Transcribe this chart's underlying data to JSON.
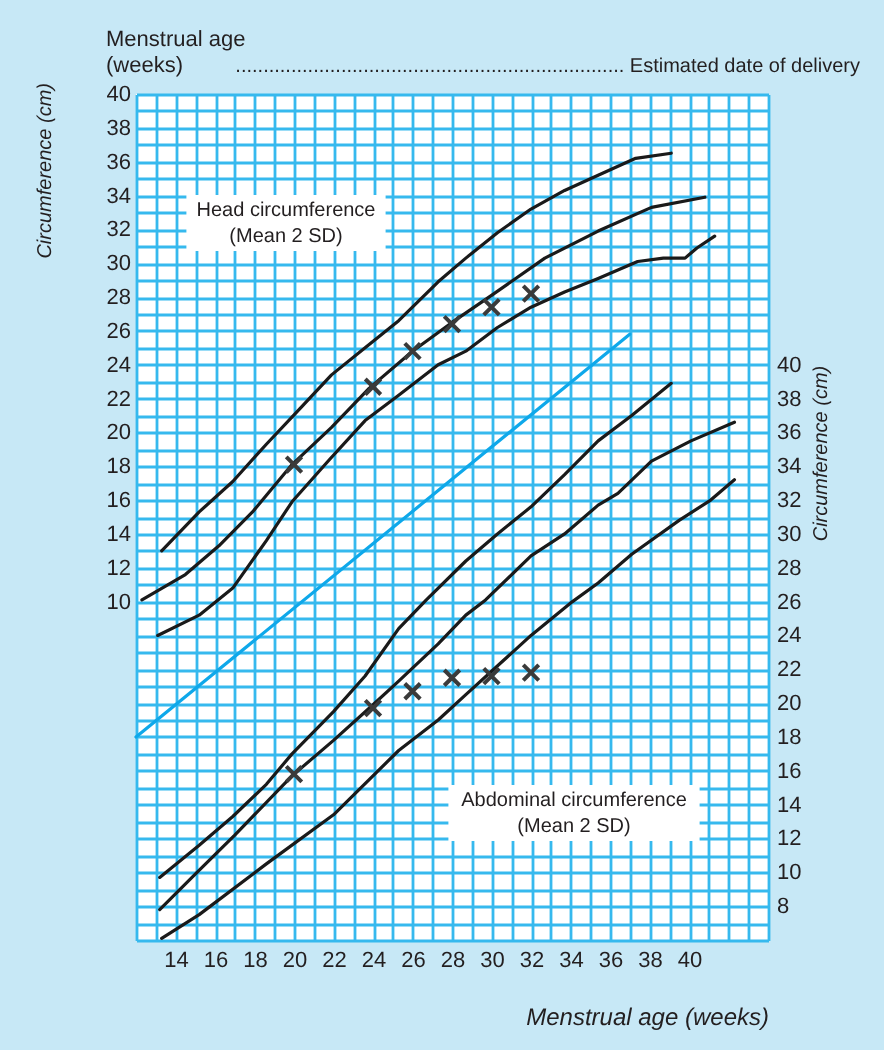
{
  "chart_data": {
    "type": "line",
    "xlabel": "Menstrual age (weeks)",
    "ylabel": "Circumference (cm)",
    "y2label": "Circumference (cm)",
    "annotations": [
      "Menstrual age\n(weeks)",
      "...................................................................... Estimated date of delivery",
      "Head circumference\n(Mean 2 SD)",
      "Abdominal circumference\n(Mean 2 SD)"
    ],
    "xlim": [
      12,
      44
    ],
    "xticks": [
      {
        "value": 12,
        "label": null
      },
      {
        "value": 13,
        "label": null
      },
      14,
      {
        "value": 15,
        "label": null
      },
      16,
      {
        "value": 17,
        "label": null
      },
      18,
      {
        "value": 19,
        "label": null
      },
      20,
      {
        "value": 21,
        "label": null
      },
      22,
      {
        "value": 23,
        "label": null
      },
      24,
      {
        "value": 25,
        "label": null
      },
      26,
      {
        "value": 27,
        "label": null
      },
      28,
      {
        "value": 29,
        "label": null
      },
      30,
      {
        "value": 31,
        "label": null
      },
      32,
      {
        "value": 33,
        "label": null
      },
      34,
      {
        "value": 35,
        "label": null
      },
      36,
      {
        "value": 37,
        "label": null
      },
      38,
      {
        "value": 39,
        "label": null
      },
      40,
      {
        "value": 41,
        "label": null
      },
      {
        "value": 42,
        "label": null
      },
      {
        "value": 43,
        "label": null
      },
      {
        "value": 44,
        "label": null
      }
    ],
    "ylim": [
      -10,
      40
    ],
    "yticks": [
      {
        "value": -10,
        "label": null
      },
      {
        "value": -9,
        "label": null
      },
      {
        "value": -8,
        "label": null
      },
      {
        "value": -7,
        "label": null
      },
      {
        "value": -6,
        "label": null
      },
      {
        "value": -5,
        "label": null
      },
      {
        "value": -4,
        "label": null
      },
      {
        "value": -3,
        "label": null
      },
      {
        "value": -2,
        "label": null
      },
      {
        "value": -1,
        "label": null
      },
      {
        "value": 0,
        "label": null
      },
      {
        "value": 1,
        "label": null
      },
      {
        "value": 2,
        "label": null
      },
      {
        "value": 3,
        "label": null
      },
      {
        "value": 4,
        "label": null
      },
      {
        "value": 5,
        "label": null
      },
      {
        "value": 6,
        "label": null
      },
      {
        "value": 7,
        "label": null
      },
      {
        "value": 8,
        "label": null
      },
      {
        "value": 9,
        "label": null
      },
      10,
      {
        "value": 11,
        "label": null
      },
      12,
      {
        "value": 13,
        "label": null
      },
      14,
      {
        "value": 15,
        "label": null
      },
      16,
      {
        "value": 17,
        "label": null
      },
      18,
      {
        "value": 19,
        "label": null
      },
      20,
      {
        "value": 21,
        "label": null
      },
      22,
      {
        "value": 23,
        "label": null
      },
      24,
      {
        "value": 25,
        "label": null
      },
      26,
      {
        "value": 27,
        "label": null
      },
      28,
      {
        "value": 29,
        "label": null
      },
      30,
      {
        "value": 31,
        "label": null
      },
      32,
      {
        "value": 33,
        "label": null
      },
      34,
      {
        "value": 35,
        "label": null
      },
      36,
      {
        "value": 37,
        "label": null
      },
      38,
      {
        "value": 39,
        "label": null
      },
      40
    ],
    "y2lim": [
      6,
      56
    ],
    "y2ticks": [
      8,
      10,
      12,
      14,
      16,
      18,
      20,
      22,
      24,
      26,
      28,
      30,
      32,
      34,
      36,
      38,
      40
    ],
    "grid": true,
    "marker": "none",
    "line_style": "solid",
    "series": [
      {
        "color": "#1a1a1a",
        "x": [
          13.3,
          15.2,
          16.9,
          18.6,
          20.3,
          21.9,
          23.6,
          25.3,
          27.3,
          28.7,
          30.3,
          32.0,
          33.7,
          35.4,
          37.3,
          39.1
        ],
        "values": [
          13.0,
          15.3,
          17.1,
          19.3,
          21.4,
          23.4,
          25.0,
          26.6,
          28.9,
          30.3,
          31.8,
          33.2,
          34.3,
          35.2,
          36.2,
          36.5
        ]
      },
      {
        "color": "#1a1a1a",
        "x": [
          12.3,
          14.5,
          16.2,
          17.9,
          19.9,
          21.9,
          23.8,
          26.0,
          28.0,
          30.0,
          32.7,
          35.4,
          38.1,
          40.8
        ],
        "values": [
          10.1,
          11.6,
          13.3,
          15.3,
          18.1,
          20.3,
          22.6,
          24.8,
          26.5,
          28.1,
          30.3,
          31.9,
          33.3,
          33.9
        ]
      },
      {
        "color": "#1a1a1a",
        "x": [
          13.1,
          15.2,
          16.9,
          18.6,
          19.9,
          21.8,
          23.6,
          25.3,
          27.3,
          28.7,
          30.3,
          32.0,
          33.7,
          35.4,
          37.4,
          38.7,
          39.8,
          40.4,
          41.3
        ],
        "values": [
          8.0,
          9.2,
          10.8,
          13.6,
          15.9,
          18.4,
          20.7,
          22.2,
          24.0,
          24.8,
          26.2,
          27.4,
          28.3,
          29.1,
          30.1,
          30.3,
          30.3,
          30.9,
          31.6
        ]
      },
      {
        "type": "scatter",
        "marker": "cross",
        "color": "#3a3a3a",
        "x": [
          20,
          24,
          26,
          28,
          30,
          32
        ],
        "values": [
          18.1,
          22.7,
          24.8,
          26.4,
          27.4,
          28.2
        ]
      },
      {
        "color": "#0ea8ea",
        "x": [
          12,
          37
        ],
        "values": [
          2,
          25.8
        ]
      },
      {
        "axis": "y2",
        "color": "#1a1a1a",
        "x": [
          13.2,
          15.2,
          16.9,
          18.6,
          19.9,
          22.0,
          23.6,
          25.3,
          26.7,
          28.7,
          30.3,
          32.0,
          33.7,
          35.4,
          37.1,
          39.1
        ],
        "values": [
          9.7,
          11.6,
          13.3,
          15.2,
          17.0,
          19.5,
          21.6,
          24.4,
          26.1,
          28.4,
          30.0,
          31.6,
          33.5,
          35.5,
          37.0,
          38.9
        ]
      },
      {
        "axis": "y2",
        "color": "#1a1a1a",
        "x": [
          13.2,
          15.0,
          17.0,
          19.9,
          22.0,
          24.0,
          25.3,
          27.3,
          28.7,
          29.7,
          32.0,
          33.7,
          35.4,
          36.4,
          38.1,
          40.1,
          42.3
        ],
        "values": [
          7.8,
          9.9,
          12.2,
          15.7,
          17.8,
          19.9,
          21.3,
          23.5,
          25.2,
          26.1,
          28.7,
          30.0,
          31.7,
          32.4,
          34.3,
          35.5,
          36.6
        ]
      },
      {
        "axis": "y2",
        "color": "#1a1a1a",
        "x": [
          13.3,
          15.2,
          18.6,
          22.0,
          25.3,
          27.3,
          28.7,
          32.0,
          34.1,
          35.4,
          37.1,
          39.5,
          41.1,
          42.3
        ],
        "values": [
          6.1,
          7.5,
          10.5,
          13.4,
          17.2,
          19.0,
          20.5,
          24.0,
          26.0,
          27.1,
          28.8,
          30.8,
          32.0,
          33.2
        ]
      },
      {
        "axis": "y2",
        "type": "scatter",
        "marker": "cross",
        "color": "#3a3a3a",
        "x": [
          20,
          24,
          26,
          28,
          30,
          32
        ],
        "values": [
          15.8,
          19.7,
          20.7,
          21.5,
          21.6,
          21.8
        ]
      }
    ]
  }
}
